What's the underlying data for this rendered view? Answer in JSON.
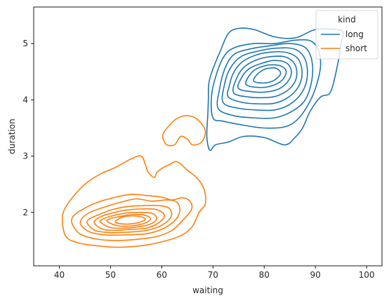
{
  "chart_data": {
    "type": "kde-contour",
    "title": "",
    "xlabel": "waiting",
    "ylabel": "duration",
    "xlim": [
      35,
      103
    ],
    "ylim": [
      1.05,
      5.65
    ],
    "xticks": [
      40,
      50,
      60,
      70,
      80,
      90,
      100
    ],
    "yticks": [
      2,
      3,
      4,
      5
    ],
    "grid": false,
    "legend": {
      "title": "kind",
      "position": "top-right",
      "entries": [
        "long",
        "short"
      ]
    },
    "series": [
      {
        "name": "long",
        "color": "#1f77b4",
        "contours": [
          [
            [
              69.5,
              3.1
            ],
            [
              70.5,
              3.2
            ],
            [
              73,
              3.25
            ],
            [
              76,
              3.35
            ],
            [
              80,
              3.33
            ],
            [
              84,
              3.2
            ],
            [
              86,
              3.33
            ],
            [
              87.5,
              3.5
            ],
            [
              89,
              3.8
            ],
            [
              91,
              4.05
            ],
            [
              93,
              4.15
            ],
            [
              94.5,
              4.7
            ],
            [
              95,
              5.0
            ],
            [
              95.4,
              5.2
            ],
            [
              94,
              5.25
            ],
            [
              90,
              5.25
            ],
            [
              86,
              5.1
            ],
            [
              82,
              5.12
            ],
            [
              78,
              5.25
            ],
            [
              75,
              5.27
            ],
            [
              73,
              5.18
            ],
            [
              71.5,
              4.88
            ],
            [
              70,
              4.55
            ],
            [
              69.2,
              4.3
            ],
            [
              69.1,
              4.0
            ],
            [
              69,
              3.75
            ],
            [
              68.8,
              3.4
            ],
            [
              69,
              3.2
            ]
          ],
          [
            [
              70,
              3.68
            ],
            [
              72,
              3.62
            ],
            [
              76,
              3.55
            ],
            [
              80,
              3.5
            ],
            [
              84,
              3.52
            ],
            [
              86.5,
              3.65
            ],
            [
              88.5,
              3.9
            ],
            [
              90,
              4.2
            ],
            [
              91,
              4.6
            ],
            [
              90.5,
              4.9
            ],
            [
              89,
              5.05
            ],
            [
              86,
              5.06
            ],
            [
              82,
              5.0
            ],
            [
              78,
              5.0
            ],
            [
              74,
              4.92
            ],
            [
              72,
              4.75
            ],
            [
              70.5,
              4.4
            ],
            [
              69.7,
              4.05
            ]
          ],
          [
            [
              71,
              3.85
            ],
            [
              74,
              3.72
            ],
            [
              78,
              3.68
            ],
            [
              82,
              3.68
            ],
            [
              85.5,
              3.8
            ],
            [
              88,
              4.0
            ],
            [
              89.3,
              4.35
            ],
            [
              89.3,
              4.7
            ],
            [
              88,
              4.93
            ],
            [
              85,
              5.0
            ],
            [
              81,
              4.96
            ],
            [
              77,
              4.9
            ],
            [
              74,
              4.8
            ],
            [
              72.3,
              4.55
            ],
            [
              71.3,
              4.2
            ]
          ],
          [
            [
              72,
              3.95
            ],
            [
              75,
              3.85
            ],
            [
              78.5,
              3.82
            ],
            [
              82,
              3.82
            ],
            [
              85,
              3.92
            ],
            [
              87.3,
              4.12
            ],
            [
              88.4,
              4.4
            ],
            [
              88,
              4.72
            ],
            [
              86,
              4.9
            ],
            [
              82.5,
              4.92
            ],
            [
              79,
              4.87
            ],
            [
              75.5,
              4.77
            ],
            [
              73.3,
              4.55
            ],
            [
              72.2,
              4.25
            ]
          ],
          [
            [
              73,
              4.05
            ],
            [
              76,
              3.95
            ],
            [
              79,
              3.93
            ],
            [
              82,
              3.94
            ],
            [
              84.8,
              4.05
            ],
            [
              86.8,
              4.25
            ],
            [
              87.4,
              4.5
            ],
            [
              86.6,
              4.73
            ],
            [
              84.5,
              4.84
            ],
            [
              81.5,
              4.85
            ],
            [
              78.5,
              4.8
            ],
            [
              75.8,
              4.68
            ],
            [
              74,
              4.48
            ],
            [
              73.2,
              4.25
            ]
          ],
          [
            [
              74,
              4.13
            ],
            [
              77,
              4.05
            ],
            [
              80,
              4.04
            ],
            [
              82.5,
              4.07
            ],
            [
              85,
              4.2
            ],
            [
              86.3,
              4.4
            ],
            [
              86,
              4.63
            ],
            [
              84.2,
              4.76
            ],
            [
              81.5,
              4.77
            ],
            [
              78.8,
              4.72
            ],
            [
              76.3,
              4.6
            ],
            [
              74.8,
              4.42
            ]
          ],
          [
            [
              75,
              4.2
            ],
            [
              78,
              4.14
            ],
            [
              80.5,
              4.14
            ],
            [
              83,
              4.2
            ],
            [
              84.8,
              4.35
            ],
            [
              85.3,
              4.52
            ],
            [
              84.3,
              4.66
            ],
            [
              82,
              4.7
            ],
            [
              79.5,
              4.65
            ],
            [
              77,
              4.55
            ],
            [
              75.5,
              4.38
            ]
          ],
          [
            [
              76.5,
              4.27
            ],
            [
              79,
              4.22
            ],
            [
              81.5,
              4.25
            ],
            [
              83.5,
              4.35
            ],
            [
              84.3,
              4.5
            ],
            [
              83.3,
              4.6
            ],
            [
              81,
              4.62
            ],
            [
              78.5,
              4.55
            ],
            [
              77,
              4.42
            ]
          ],
          [
            [
              78,
              4.33
            ],
            [
              80,
              4.3
            ],
            [
              82,
              4.35
            ],
            [
              83.2,
              4.47
            ],
            [
              82.3,
              4.56
            ],
            [
              80.3,
              4.55
            ],
            [
              78.6,
              4.45
            ]
          ]
        ]
      },
      {
        "name": "short",
        "color": "#ff7f0e",
        "contours": [
          [
            [
              40.7,
              1.75
            ],
            [
              41.5,
              1.55
            ],
            [
              44,
              1.45
            ],
            [
              48,
              1.4
            ],
            [
              52,
              1.38
            ],
            [
              57,
              1.42
            ],
            [
              61,
              1.5
            ],
            [
              64,
              1.6
            ],
            [
              66,
              1.75
            ],
            [
              67.3,
              2.0
            ],
            [
              68.5,
              2.15
            ],
            [
              68.3,
              2.4
            ],
            [
              67,
              2.6
            ],
            [
              65,
              2.75
            ],
            [
              63,
              2.9
            ],
            [
              61.5,
              2.85
            ],
            [
              60,
              2.78
            ],
            [
              59,
              2.7
            ],
            [
              58.5,
              2.62
            ],
            [
              57.3,
              2.72
            ],
            [
              56.8,
              2.85
            ],
            [
              56,
              3.0
            ],
            [
              54,
              2.95
            ],
            [
              51,
              2.8
            ],
            [
              48,
              2.68
            ],
            [
              45,
              2.5
            ],
            [
              42,
              2.2
            ],
            [
              40.7,
              1.98
            ]
          ],
          [
            [
              42.5,
              1.8
            ],
            [
              44,
              1.62
            ],
            [
              47,
              1.53
            ],
            [
              51,
              1.5
            ],
            [
              55,
              1.52
            ],
            [
              59,
              1.57
            ],
            [
              62,
              1.68
            ],
            [
              64,
              1.85
            ],
            [
              65.8,
              2.05
            ],
            [
              65.5,
              2.2
            ],
            [
              64,
              2.26
            ],
            [
              62,
              2.22
            ],
            [
              60,
              2.27
            ],
            [
              57,
              2.3
            ],
            [
              54,
              2.32
            ],
            [
              51,
              2.27
            ],
            [
              47.5,
              2.18
            ],
            [
              44.5,
              2.05
            ],
            [
              42.7,
              1.93
            ]
          ],
          [
            [
              44.2,
              1.78
            ],
            [
              46,
              1.65
            ],
            [
              49,
              1.6
            ],
            [
              53,
              1.6
            ],
            [
              57,
              1.62
            ],
            [
              60,
              1.7
            ],
            [
              62.5,
              1.85
            ],
            [
              63.5,
              2.02
            ],
            [
              63,
              2.18
            ],
            [
              61,
              2.22
            ],
            [
              58,
              2.2
            ],
            [
              55,
              2.24
            ],
            [
              52,
              2.18
            ],
            [
              49,
              2.1
            ],
            [
              46,
              2.0
            ],
            [
              44.5,
              1.9
            ]
          ],
          [
            [
              45.5,
              1.8
            ],
            [
              47,
              1.68
            ],
            [
              50,
              1.64
            ],
            [
              53.5,
              1.65
            ],
            [
              57,
              1.68
            ],
            [
              60,
              1.77
            ],
            [
              61.8,
              1.92
            ],
            [
              61.5,
              2.07
            ],
            [
              59.5,
              2.12
            ],
            [
              56.5,
              2.12
            ],
            [
              53,
              2.1
            ],
            [
              50,
              2.04
            ],
            [
              47.5,
              1.95
            ],
            [
              45.8,
              1.88
            ]
          ],
          [
            [
              46.8,
              1.82
            ],
            [
              48.5,
              1.7
            ],
            [
              51,
              1.68
            ],
            [
              54,
              1.7
            ],
            [
              57,
              1.72
            ],
            [
              59.5,
              1.82
            ],
            [
              60.5,
              1.95
            ],
            [
              59,
              2.05
            ],
            [
              56,
              2.06
            ],
            [
              53,
              2.04
            ],
            [
              50,
              1.98
            ],
            [
              48,
              1.92
            ]
          ],
          [
            [
              48,
              1.83
            ],
            [
              50,
              1.73
            ],
            [
              52.5,
              1.72
            ],
            [
              55,
              1.74
            ],
            [
              57.5,
              1.78
            ],
            [
              59,
              1.88
            ],
            [
              58.2,
              1.98
            ],
            [
              55.5,
              2.0
            ],
            [
              52.5,
              1.98
            ],
            [
              50,
              1.93
            ],
            [
              48.5,
              1.88
            ]
          ],
          [
            [
              49.3,
              1.84
            ],
            [
              51.5,
              1.76
            ],
            [
              54,
              1.76
            ],
            [
              56.5,
              1.8
            ],
            [
              57.8,
              1.88
            ],
            [
              56.7,
              1.95
            ],
            [
              54,
              1.96
            ],
            [
              51.5,
              1.92
            ],
            [
              50,
              1.89
            ]
          ],
          [
            [
              51,
              1.82
            ],
            [
              53,
              1.79
            ],
            [
              55.5,
              1.82
            ],
            [
              56.8,
              1.88
            ],
            [
              55.5,
              1.93
            ],
            [
              53,
              1.93
            ],
            [
              51.5,
              1.88
            ]
          ],
          [
            [
              60.3,
              3.4
            ],
            [
              61.5,
              3.55
            ],
            [
              63,
              3.67
            ],
            [
              65,
              3.72
            ],
            [
              67,
              3.65
            ],
            [
              68.5,
              3.45
            ],
            [
              67.8,
              3.25
            ],
            [
              66,
              3.2
            ],
            [
              65,
              3.3
            ],
            [
              63.7,
              3.35
            ],
            [
              62.5,
              3.2
            ],
            [
              61,
              3.2
            ],
            [
              60.3,
              3.3
            ]
          ]
        ]
      }
    ]
  }
}
